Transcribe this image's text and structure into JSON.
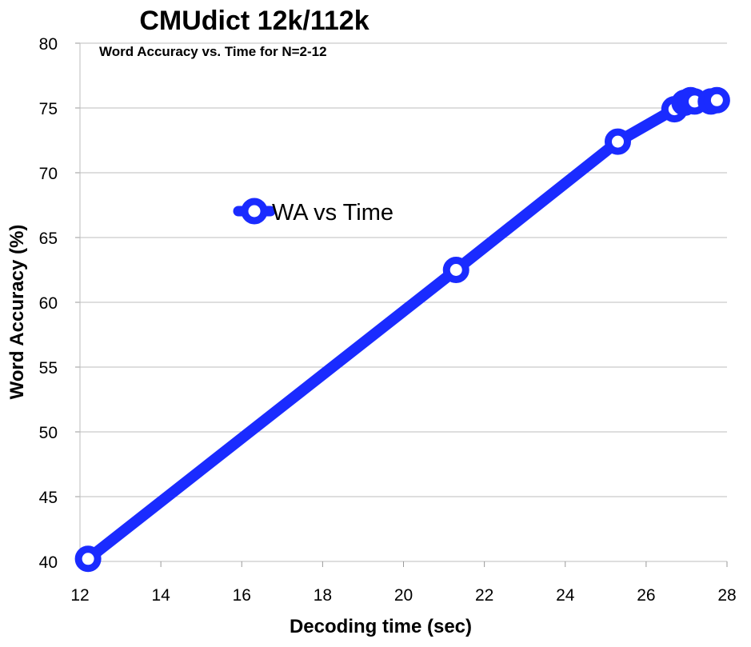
{
  "chart_data": {
    "type": "line",
    "title": "CMUdict 12k/112k",
    "subtitle": "Word Accuracy vs. Time for N=2-12",
    "xlabel": "Decoding time (sec)",
    "ylabel": "Word Accuracy (%)",
    "xlim": [
      12,
      28
    ],
    "ylim": [
      40,
      80
    ],
    "xticks": [
      12,
      14,
      16,
      18,
      20,
      22,
      24,
      26,
      28
    ],
    "yticks": [
      40,
      45,
      50,
      55,
      60,
      65,
      70,
      75,
      80
    ],
    "grid": "horizontal",
    "legend_position": "upper-left",
    "series": [
      {
        "name": "WA vs Time",
        "color": "#1a2bff",
        "x": [
          12.2,
          21.3,
          25.3,
          26.7,
          26.95,
          27.1,
          27.2,
          27.6,
          27.75
        ],
        "y": [
          40.2,
          62.5,
          72.4,
          74.9,
          75.4,
          75.6,
          75.5,
          75.5,
          75.6
        ]
      }
    ]
  }
}
